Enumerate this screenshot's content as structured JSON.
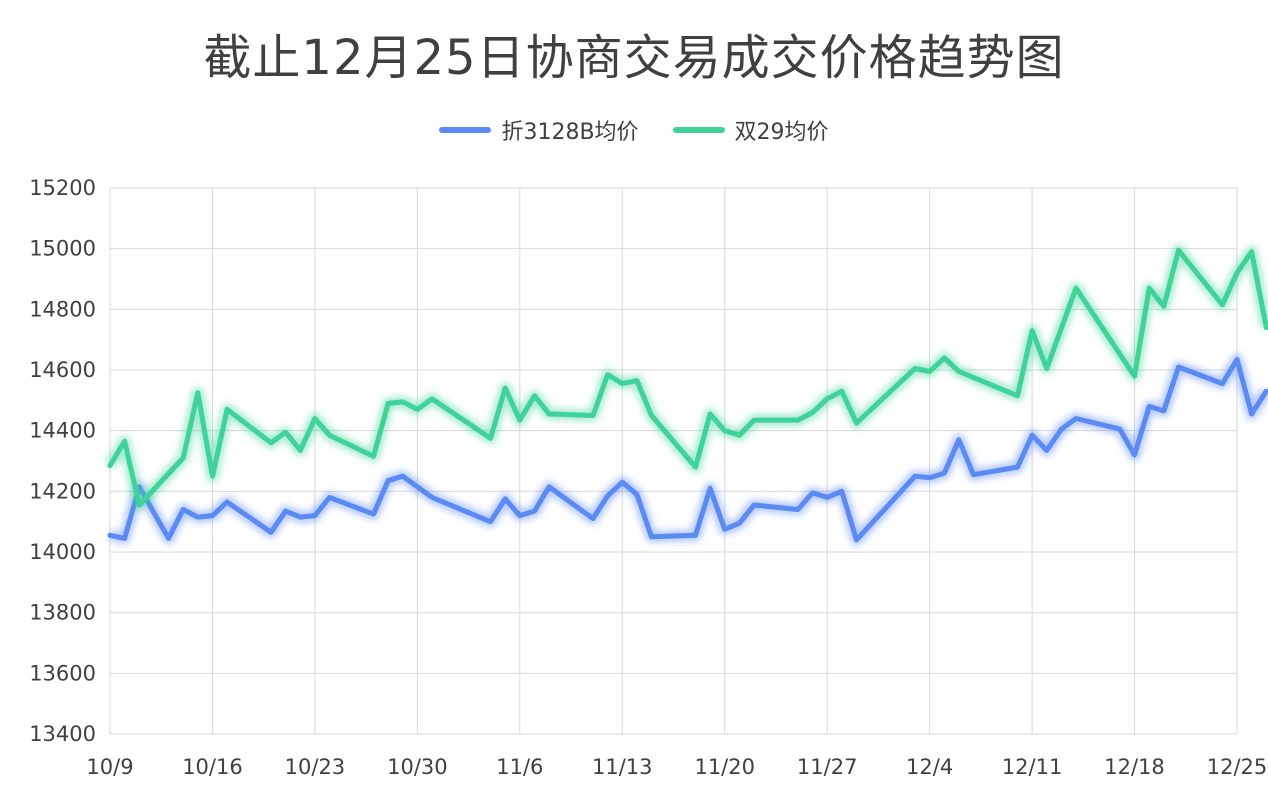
{
  "chart_data": {
    "type": "line",
    "title": "截止12月25日协商交易成交价格趋势图",
    "xlabel": "",
    "ylabel": "",
    "ylim": [
      13400,
      15200
    ],
    "yticks": [
      13400,
      13600,
      13800,
      14000,
      14200,
      14400,
      14600,
      14800,
      15000,
      15200
    ],
    "xlim": [
      "10/9",
      "12/25"
    ],
    "x_tick_labels": [
      "10/9",
      "10/16",
      "10/23",
      "10/30",
      "11/6",
      "11/13",
      "11/20",
      "11/27",
      "12/4",
      "12/11",
      "12/18",
      "12/25"
    ],
    "grid": true,
    "legend_position": "top",
    "series": [
      {
        "name": "折3128B均价",
        "color": "#5B8AF5",
        "points": [
          [
            "10/9",
            14055
          ],
          [
            "10/10",
            14045
          ],
          [
            "10/11",
            14215
          ],
          [
            "10/13",
            14045
          ],
          [
            "10/14",
            14140
          ],
          [
            "10/15",
            14115
          ],
          [
            "10/16",
            14120
          ],
          [
            "10/17",
            14165
          ],
          [
            "10/20",
            14065
          ],
          [
            "10/21",
            14135
          ],
          [
            "10/22",
            14115
          ],
          [
            "10/23",
            14120
          ],
          [
            "10/24",
            14180
          ],
          [
            "10/27",
            14125
          ],
          [
            "10/28",
            14235
          ],
          [
            "10/29",
            14250
          ],
          [
            "10/31",
            14180
          ],
          [
            "11/4",
            14100
          ],
          [
            "11/5",
            14175
          ],
          [
            "11/6",
            14120
          ],
          [
            "11/7",
            14135
          ],
          [
            "11/8",
            14215
          ],
          [
            "11/11",
            14110
          ],
          [
            "11/12",
            14185
          ],
          [
            "11/13",
            14230
          ],
          [
            "11/14",
            14190
          ],
          [
            "11/15",
            14050
          ],
          [
            "11/18",
            14055
          ],
          [
            "11/19",
            14210
          ],
          [
            "11/20",
            14075
          ],
          [
            "11/21",
            14095
          ],
          [
            "11/22",
            14155
          ],
          [
            "11/25",
            14140
          ],
          [
            "11/26",
            14195
          ],
          [
            "11/27",
            14180
          ],
          [
            "11/28",
            14200
          ],
          [
            "11/29",
            14040
          ],
          [
            "12/3",
            14250
          ],
          [
            "12/4",
            14245
          ],
          [
            "12/5",
            14260
          ],
          [
            "12/6",
            14370
          ],
          [
            "12/7",
            14255
          ],
          [
            "12/10",
            14280
          ],
          [
            "12/11",
            14385
          ],
          [
            "12/12",
            14335
          ],
          [
            "12/13",
            14405
          ],
          [
            "12/14",
            14440
          ],
          [
            "12/17",
            14405
          ],
          [
            "12/18",
            14320
          ],
          [
            "12/19",
            14480
          ],
          [
            "12/20",
            14465
          ],
          [
            "12/21",
            14610
          ],
          [
            "12/24",
            14555
          ],
          [
            "12/25",
            14635
          ],
          [
            "12/26",
            14455
          ],
          [
            "12/27",
            14530
          ]
        ]
      },
      {
        "name": "双29均价",
        "color": "#3FD39A",
        "points": [
          [
            "10/9",
            14285
          ],
          [
            "10/10",
            14365
          ],
          [
            "10/11",
            14155
          ],
          [
            "10/14",
            14310
          ],
          [
            "10/15",
            14525
          ],
          [
            "10/16",
            14250
          ],
          [
            "10/17",
            14470
          ],
          [
            "10/20",
            14360
          ],
          [
            "10/21",
            14395
          ],
          [
            "10/22",
            14335
          ],
          [
            "10/23",
            14440
          ],
          [
            "10/24",
            14385
          ],
          [
            "10/27",
            14315
          ],
          [
            "10/28",
            14490
          ],
          [
            "10/29",
            14495
          ],
          [
            "10/30",
            14470
          ],
          [
            "10/31",
            14505
          ],
          [
            "11/4",
            14375
          ],
          [
            "11/5",
            14540
          ],
          [
            "11/6",
            14435
          ],
          [
            "11/7",
            14515
          ],
          [
            "11/8",
            14455
          ],
          [
            "11/11",
            14450
          ],
          [
            "11/12",
            14585
          ],
          [
            "11/13",
            14555
          ],
          [
            "11/14",
            14565
          ],
          [
            "11/15",
            14450
          ],
          [
            "11/18",
            14280
          ],
          [
            "11/19",
            14455
          ],
          [
            "11/20",
            14400
          ],
          [
            "11/21",
            14385
          ],
          [
            "11/22",
            14435
          ],
          [
            "11/25",
            14435
          ],
          [
            "11/26",
            14460
          ],
          [
            "11/27",
            14505
          ],
          [
            "11/28",
            14530
          ],
          [
            "11/29",
            14425
          ],
          [
            "12/3",
            14605
          ],
          [
            "12/4",
            14595
          ],
          [
            "12/5",
            14640
          ],
          [
            "12/6",
            14595
          ],
          [
            "12/10",
            14515
          ],
          [
            "12/11",
            14730
          ],
          [
            "12/12",
            14605
          ],
          [
            "12/14",
            14870
          ],
          [
            "12/18",
            14580
          ],
          [
            "12/19",
            14870
          ],
          [
            "12/20",
            14810
          ],
          [
            "12/21",
            14995
          ],
          [
            "12/24",
            14815
          ],
          [
            "12/25",
            14920
          ],
          [
            "12/26",
            14990
          ],
          [
            "12/27",
            14740
          ]
        ]
      }
    ]
  }
}
